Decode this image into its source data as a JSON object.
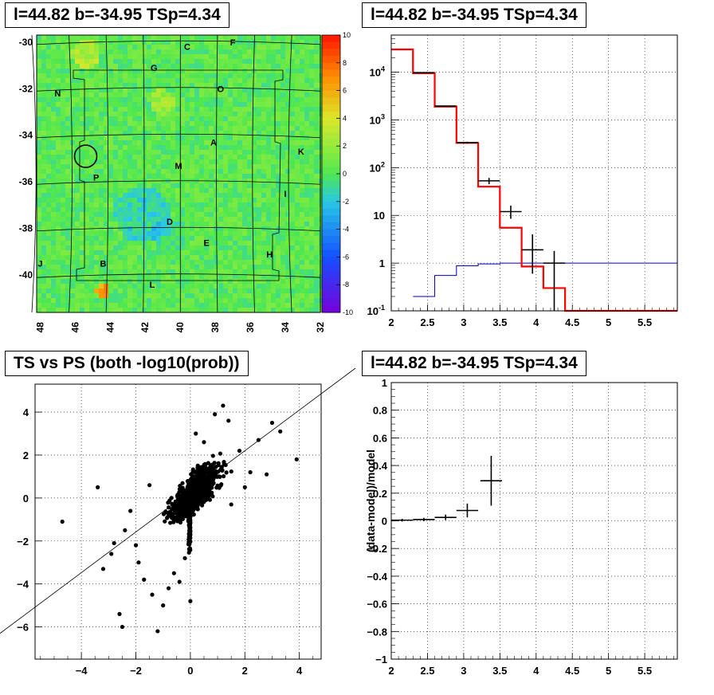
{
  "panels": {
    "map_title": "l=44.82 b=-34.95 TSp=4.34",
    "spectrum_title": "l=44.82 b=-34.95 TSp=4.34",
    "scatter_title": "TS vs PS (both -log10(prob))",
    "residual_title": "l=44.82 b=-34.95 TSp=4.34"
  },
  "colors": {
    "model_red": "#ff0000",
    "background_blue": "#0000cc",
    "data_black": "#000000",
    "map_base": "#4fe84f"
  },
  "chart_data": [
    {
      "type": "heatmap",
      "title": "l=44.82 b=-34.95 TSp=4.34",
      "x_ticks": [
        "48",
        "46",
        "44",
        "42",
        "40",
        "38",
        "36",
        "34",
        "32"
      ],
      "y_ticks": [
        "-30",
        "-32",
        "-34",
        "-36",
        "-38",
        "-40"
      ],
      "colorbar_ticks": [
        "10",
        "8",
        "6",
        "4",
        "2",
        "0",
        "-2",
        "-4",
        "-6",
        "-8",
        "-10"
      ],
      "zlim": [
        -10,
        10
      ],
      "xlim": [
        48.2,
        32.0
      ],
      "ylim": [
        -41.6,
        -29.7
      ],
      "grid": "on",
      "region_labels": [
        {
          "text": "C",
          "l": 39.6,
          "b": -30.2
        },
        {
          "text": "F",
          "l": 37.0,
          "b": -30.0
        },
        {
          "text": "G",
          "l": 41.5,
          "b": -31.1
        },
        {
          "text": "N",
          "l": 47.0,
          "b": -32.2
        },
        {
          "text": "O",
          "l": 37.7,
          "b": -32.0
        },
        {
          "text": "A",
          "l": 38.1,
          "b": -34.3
        },
        {
          "text": "K",
          "l": 33.1,
          "b": -34.7
        },
        {
          "text": "M",
          "l": 40.1,
          "b": -35.3
        },
        {
          "text": "P",
          "l": 44.8,
          "b": -35.8
        },
        {
          "text": "I",
          "l": 34.0,
          "b": -36.5
        },
        {
          "text": "D",
          "l": 40.6,
          "b": -37.7
        },
        {
          "text": "E",
          "l": 38.5,
          "b": -38.6
        },
        {
          "text": "H",
          "l": 34.9,
          "b": -39.1
        },
        {
          "text": "J",
          "l": 48.0,
          "b": -39.5
        },
        {
          "text": "B",
          "l": 44.4,
          "b": -39.5
        },
        {
          "text": "L",
          "l": 41.6,
          "b": -40.4
        }
      ],
      "source_marker": {
        "l": 45.4,
        "b": -34.9
      }
    },
    {
      "type": "line",
      "title": "l=44.82 b=-34.95 TSp=4.34",
      "x_ticks": [
        "2",
        "2.5",
        "3",
        "3.5",
        "4",
        "4.5",
        "5",
        "5.5"
      ],
      "y_ticks": [
        "10^-1",
        "1",
        "10",
        "10^2",
        "10^3",
        "10^4"
      ],
      "xlim": [
        2,
        5.95
      ],
      "ylim": [
        0.1,
        60000
      ],
      "log_y": true,
      "grid": "on",
      "series": [
        {
          "values": [
            [
              2.0,
              30000
            ],
            [
              2.3,
              9500
            ],
            [
              2.6,
              1900
            ],
            [
              2.9,
              330
            ],
            [
              3.2,
              40
            ],
            [
              3.5,
              5.5
            ],
            [
              3.8,
              0.85
            ],
            [
              4.1,
              0.3
            ],
            [
              4.4,
              0.1
            ],
            [
              5.95,
              0.1
            ]
          ]
        },
        {
          "values": [
            [
              2.3,
              0.2
            ],
            [
              2.6,
              0.55
            ],
            [
              2.9,
              0.88
            ],
            [
              3.2,
              0.96
            ],
            [
              3.5,
              1.0
            ],
            [
              3.8,
              1.0
            ],
            [
              4.1,
              1.0
            ],
            [
              4.4,
              1.0
            ],
            [
              5.95,
              1.0
            ]
          ]
        },
        {
          "values": [
            {
              "x": 2.45,
              "y": 9800,
              "xerr": 0.15,
              "ylo": 9600,
              "yhi": 10000
            },
            {
              "x": 2.75,
              "y": 1950,
              "xerr": 0.15,
              "ylo": 1900,
              "yhi": 2000
            },
            {
              "x": 3.05,
              "y": 335,
              "xerr": 0.15,
              "ylo": 320,
              "yhi": 350
            },
            {
              "x": 3.35,
              "y": 53,
              "xerr": 0.15,
              "ylo": 45,
              "yhi": 61
            },
            {
              "x": 3.65,
              "y": 12,
              "xerr": 0.15,
              "ylo": 8.5,
              "yhi": 16
            },
            {
              "x": 3.95,
              "y": 1.9,
              "xerr": 0.15,
              "ylo": 0.6,
              "yhi": 4.0
            },
            {
              "x": 4.25,
              "y": 1.0,
              "xerr": 0.15,
              "ylo": 0.1,
              "yhi": 1.8
            }
          ]
        }
      ]
    },
    {
      "type": "scatter",
      "title": "TS vs PS (both -log10(prob))",
      "x_ticks": [
        "−4",
        "−2",
        "0",
        "2",
        "4"
      ],
      "y_ticks": [
        "−6",
        "−4",
        "−2",
        "0",
        "2",
        "4"
      ],
      "xlim": [
        -5.7,
        4.8
      ],
      "ylim": [
        -7.5,
        5.3
      ],
      "grid": "on",
      "reference_line": {
        "slope": 1,
        "intercept": 0
      },
      "points_sample": [
        [
          -4.7,
          -1.1
        ],
        [
          -3.4,
          0.5
        ],
        [
          -3.2,
          -3.3
        ],
        [
          -2.9,
          -2.6
        ],
        [
          -2.8,
          -2.1
        ],
        [
          -2.6,
          -5.4
        ],
        [
          -2.5,
          -6.0
        ],
        [
          -2.4,
          -1.5
        ],
        [
          -2.2,
          -0.6
        ],
        [
          -2.0,
          -2.2
        ],
        [
          -1.9,
          -3.0
        ],
        [
          -1.7,
          -3.8
        ],
        [
          -1.5,
          0.6
        ],
        [
          -1.4,
          -4.5
        ],
        [
          -1.2,
          -6.2
        ],
        [
          -1.0,
          -5.0
        ],
        [
          -0.8,
          -4.2
        ],
        [
          -0.6,
          -3.5
        ],
        [
          -0.4,
          -3.9
        ],
        [
          -0.2,
          -2.8
        ],
        [
          0.0,
          -4.8
        ],
        [
          0.2,
          3.0
        ],
        [
          0.5,
          2.6
        ],
        [
          0.9,
          3.9
        ],
        [
          1.2,
          4.3
        ],
        [
          1.4,
          3.6
        ],
        [
          1.8,
          2.2
        ],
        [
          2.2,
          1.2
        ],
        [
          2.5,
          2.7
        ],
        [
          3.0,
          3.5
        ],
        [
          3.3,
          3.1
        ],
        [
          3.9,
          1.8
        ],
        [
          2.8,
          1.1
        ],
        [
          2.0,
          0.5
        ],
        [
          1.5,
          -0.3
        ]
      ]
    },
    {
      "type": "line",
      "title": "l=44.82 b=-34.95 TSp=4.34",
      "ylabel": "(data-model)/model",
      "x_ticks": [
        "2",
        "2.5",
        "3",
        "3.5",
        "4",
        "4.5",
        "5",
        "5.5"
      ],
      "y_ticks": [
        "−1",
        "−0.8",
        "−0.6",
        "−0.4",
        "−0.2",
        "0",
        "0.2",
        "0.4",
        "0.6",
        "0.8",
        "1"
      ],
      "xlim": [
        2,
        5.95
      ],
      "ylim": [
        -1,
        1
      ],
      "grid": "on",
      "series": [
        {
          "values": [
            {
              "x": 2.15,
              "y": 0.005,
              "xerr": 0.15,
              "yerr": 0.01
            },
            {
              "x": 2.45,
              "y": 0.01,
              "xerr": 0.15,
              "yerr": 0.012
            },
            {
              "x": 2.75,
              "y": 0.025,
              "xerr": 0.15,
              "yerr": 0.02
            },
            {
              "x": 3.05,
              "y": 0.075,
              "xerr": 0.15,
              "yerr": 0.05
            },
            {
              "x": 3.38,
              "y": 0.29,
              "xerr": 0.15,
              "yerr": 0.18
            }
          ]
        }
      ]
    }
  ]
}
